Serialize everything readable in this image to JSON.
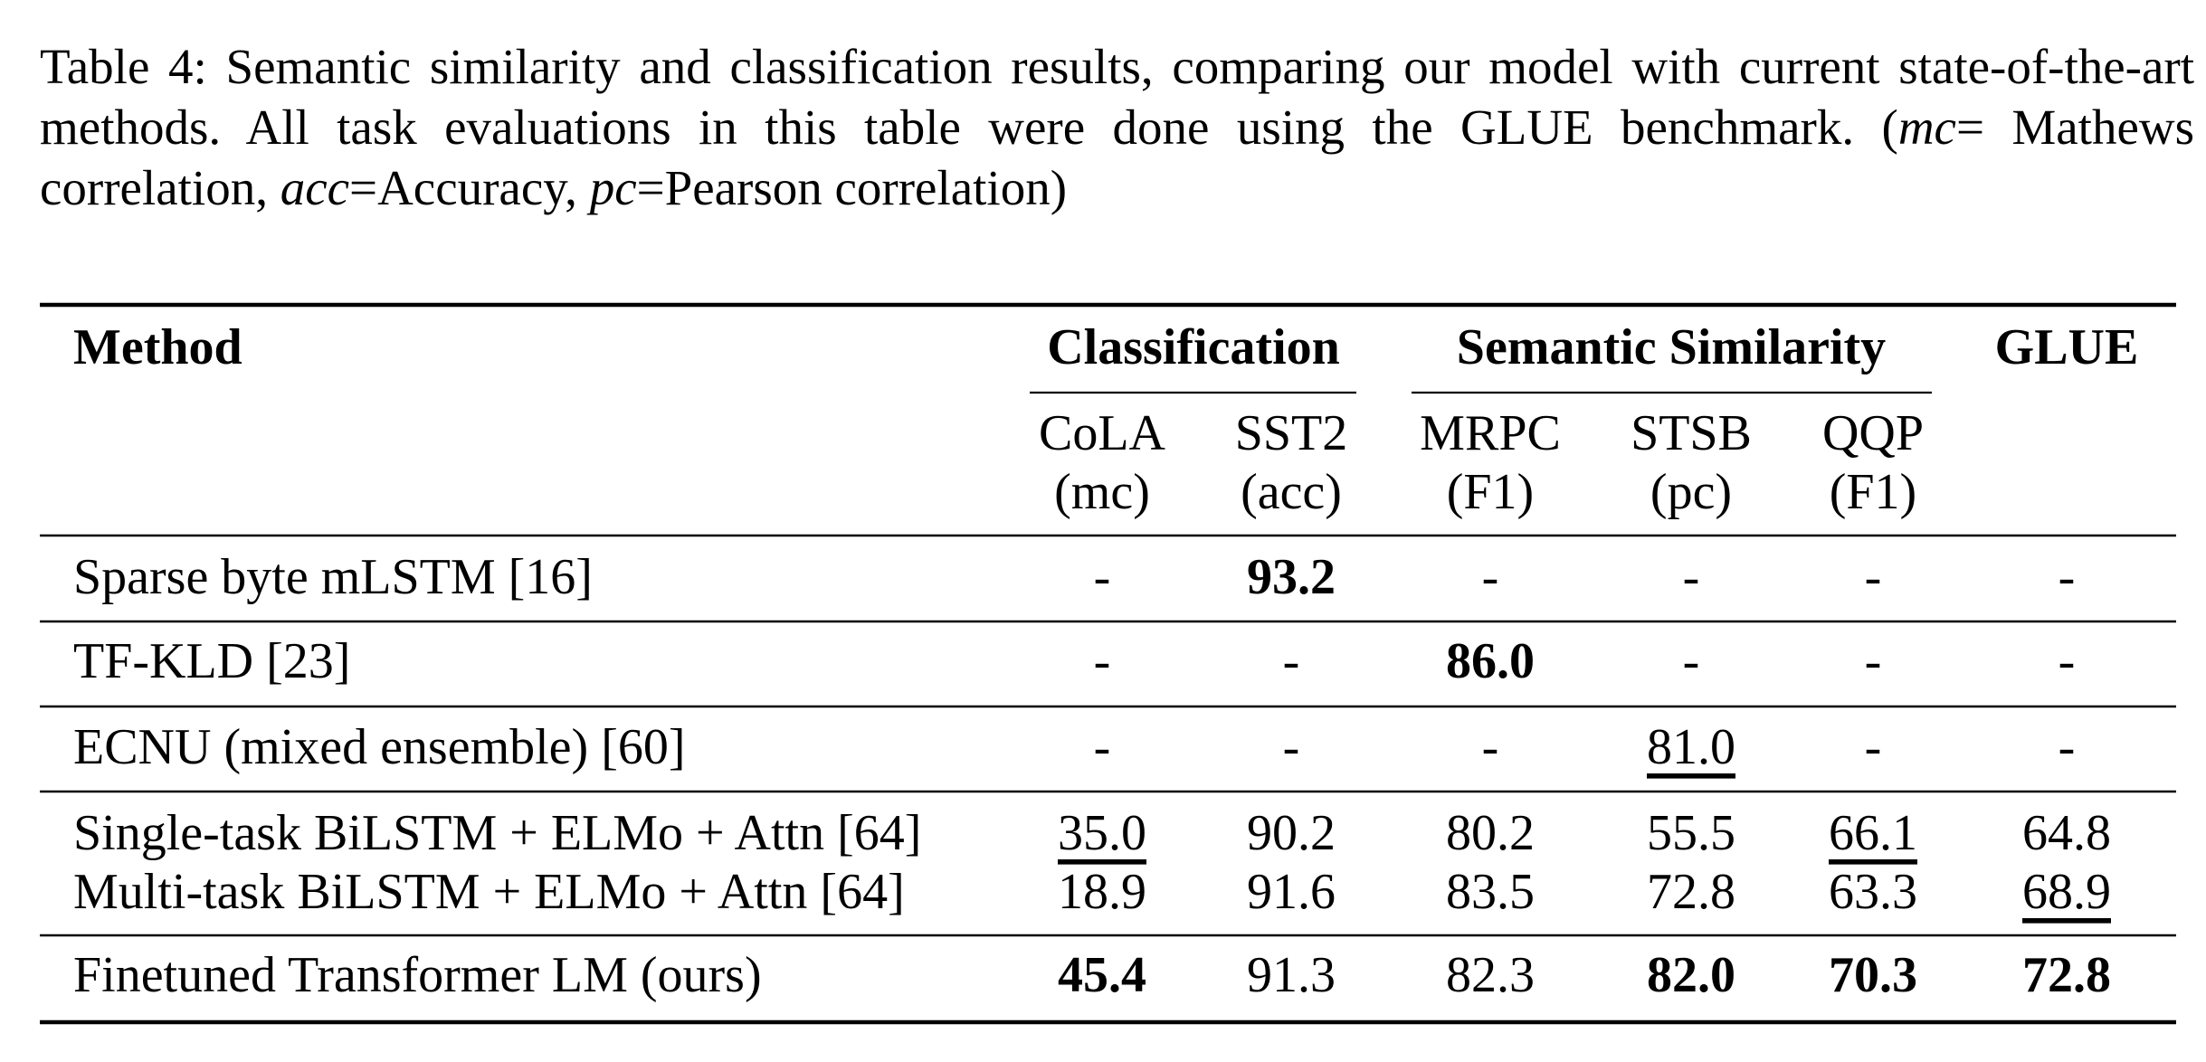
{
  "caption": {
    "parts": [
      "Table 4: Semantic similarity and classification results, comparing our model with current state-of-the-art methods. All task evaluations in this table were done using the GLUE benchmark. (",
      "mc",
      "= Mathews correlation, ",
      "acc",
      "=Accuracy, ",
      "pc",
      "=Pearson correlation)"
    ]
  },
  "table": {
    "header": {
      "method": "Method",
      "groups": [
        "Classification",
        "Semantic Similarity",
        "GLUE"
      ],
      "columns": [
        [
          "CoLA",
          "(mc)"
        ],
        [
          "SST2",
          "(acc)"
        ],
        [
          "MRPC",
          "(F1)"
        ],
        [
          "STSB",
          "(pc)"
        ],
        [
          "QQP",
          "(F1)"
        ]
      ]
    },
    "rows": [
      [
        "Sparse byte mLSTM [16]",
        "-",
        "93.2",
        "-",
        "-",
        "-",
        "-"
      ],
      [
        "TF-KLD [23]",
        "-",
        "-",
        "86.0",
        "-",
        "-",
        "-"
      ],
      [
        "ECNU (mixed ensemble) [60]",
        "-",
        "-",
        "-",
        "81.0",
        "-",
        "-"
      ],
      [
        "Single-task BiLSTM + ELMo + Attn [64]",
        "35.0",
        "90.2",
        "80.2",
        "55.5",
        "66.1",
        "64.8"
      ],
      [
        "Multi-task BiLSTM + ELMo + Attn [64]",
        "18.9",
        "91.6",
        "83.5",
        "72.8",
        "63.3",
        "68.9"
      ],
      [
        "Finetuned Transformer LM (ours)",
        "45.4",
        "91.3",
        "82.3",
        "82.0",
        "70.3",
        "72.8"
      ]
    ]
  }
}
